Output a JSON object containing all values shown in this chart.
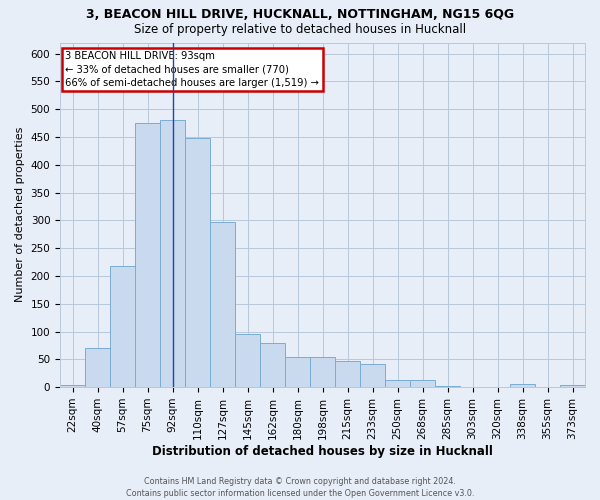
{
  "title1": "3, BEACON HILL DRIVE, HUCKNALL, NOTTINGHAM, NG15 6QG",
  "title2": "Size of property relative to detached houses in Hucknall",
  "xlabel": "Distribution of detached houses by size in Hucknall",
  "ylabel": "Number of detached properties",
  "categories": [
    "22sqm",
    "40sqm",
    "57sqm",
    "75sqm",
    "92sqm",
    "110sqm",
    "127sqm",
    "145sqm",
    "162sqm",
    "180sqm",
    "198sqm",
    "215sqm",
    "233sqm",
    "250sqm",
    "268sqm",
    "285sqm",
    "303sqm",
    "320sqm",
    "338sqm",
    "355sqm",
    "373sqm"
  ],
  "values": [
    3,
    70,
    218,
    475,
    480,
    448,
    297,
    95,
    80,
    55,
    55,
    47,
    42,
    12,
    12,
    2,
    0,
    0,
    5,
    0,
    3
  ],
  "bar_color": "#c9d9ee",
  "bar_edge_color": "#7aadd4",
  "grid_color": "#b8c8dc",
  "background_color": "#e8eef8",
  "property_bin_index": 4,
  "annotation_line1": "3 BEACON HILL DRIVE: 93sqm",
  "annotation_line2": "← 33% of detached houses are smaller (770)",
  "annotation_line3": "66% of semi-detached houses are larger (1,519) →",
  "vline_color": "#2244aa",
  "annotation_box_facecolor": "#ffffff",
  "annotation_box_edgecolor": "#cc0000",
  "footer1": "Contains HM Land Registry data © Crown copyright and database right 2024.",
  "footer2": "Contains public sector information licensed under the Open Government Licence v3.0.",
  "ylim": [
    0,
    620
  ],
  "yticks": [
    0,
    50,
    100,
    150,
    200,
    250,
    300,
    350,
    400,
    450,
    500,
    550,
    600
  ],
  "title1_fontsize": 9.0,
  "title2_fontsize": 8.5,
  "xlabel_fontsize": 8.5,
  "ylabel_fontsize": 8.0,
  "tick_fontsize": 7.5,
  "footer_fontsize": 5.8
}
